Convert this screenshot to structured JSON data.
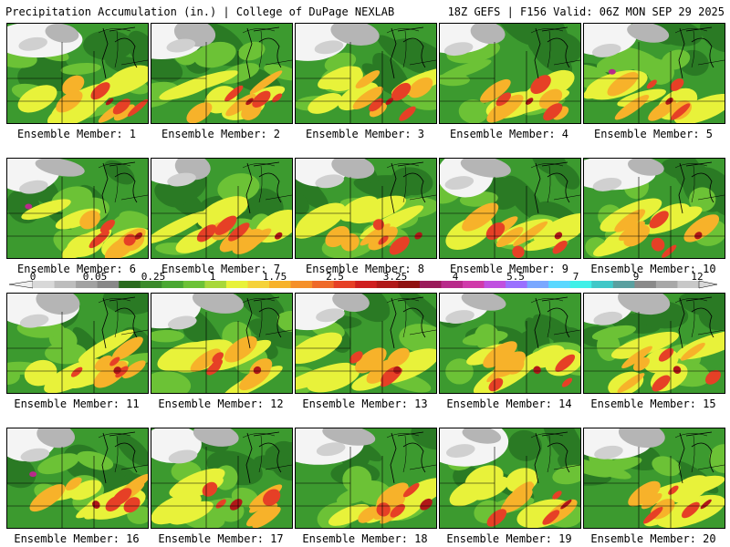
{
  "header": {
    "title": "Precipitation Accumulation (in.) | College of DuPage NEXLAB",
    "run_info": "18Z GEFS | F156 Valid: 06Z MON SEP 29 2025"
  },
  "colorbar": {
    "labels": [
      "0",
      "0.05",
      "0.25",
      "1",
      "1.75",
      "2.5",
      "3.25",
      "4",
      "5.5",
      "7",
      "9",
      "12"
    ],
    "colors": [
      "#d8d8d8",
      "#bdbdbd",
      "#a2a2a2",
      "#888888",
      "#2a6b1f",
      "#3a8a2a",
      "#4aa832",
      "#6cc236",
      "#a8d83a",
      "#e8f23a",
      "#f5d23a",
      "#f7b22a",
      "#f5902a",
      "#ef6a2a",
      "#e64026",
      "#cf1f1f",
      "#b01818",
      "#8f1010",
      "#9a1a5a",
      "#b82a8a",
      "#d03aaa",
      "#c050e0",
      "#9a70ff",
      "#7aa8ff",
      "#5ad8ff",
      "#40f0e8",
      "#40c8c8",
      "#5aa0a0",
      "#8a8a8a",
      "#a8a8a8",
      "#c8c8c8"
    ]
  },
  "members": [
    {
      "label": "Ensemble Member: 1"
    },
    {
      "label": "Ensemble Member: 2"
    },
    {
      "label": "Ensemble Member: 3"
    },
    {
      "label": "Ensemble Member: 4"
    },
    {
      "label": "Ensemble Member: 5"
    },
    {
      "label": "Ensemble Member: 6"
    },
    {
      "label": "Ensemble Member: 7"
    },
    {
      "label": "Ensemble Member: 8"
    },
    {
      "label": "Ensemble Member: 9"
    },
    {
      "label": "Ensemble Member: 10"
    },
    {
      "label": "Ensemble Member: 11"
    },
    {
      "label": "Ensemble Member: 12"
    },
    {
      "label": "Ensemble Member: 13"
    },
    {
      "label": "Ensemble Member: 14"
    },
    {
      "label": "Ensemble Member: 15"
    },
    {
      "label": "Ensemble Member: 16"
    },
    {
      "label": "Ensemble Member: 17"
    },
    {
      "label": "Ensemble Member: 18"
    },
    {
      "label": "Ensemble Member: 19"
    },
    {
      "label": "Ensemble Member: 20"
    }
  ]
}
